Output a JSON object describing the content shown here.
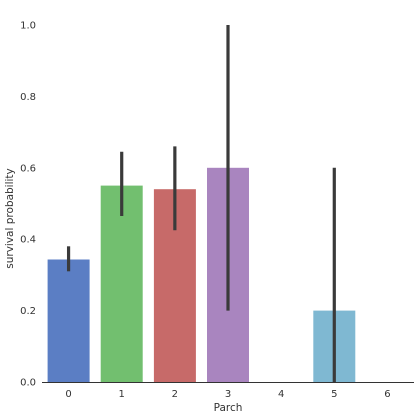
{
  "chart_data": {
    "type": "bar",
    "title": "",
    "xlabel": "Parch",
    "ylabel": "survival probability",
    "categories": [
      "0",
      "1",
      "2",
      "3",
      "4",
      "5",
      "6"
    ],
    "values": [
      0.343,
      0.55,
      0.54,
      0.6,
      0.0,
      0.2,
      0.0
    ],
    "ci_low": [
      0.31,
      0.465,
      0.425,
      0.2,
      null,
      0.0,
      null
    ],
    "ci_high": [
      0.38,
      0.645,
      0.66,
      1.0,
      null,
      0.6,
      null
    ],
    "colors": [
      "#5b7ec4",
      "#72bf6f",
      "#c76a69",
      "#a985bf",
      "#d3c37c",
      "#7fb8d2",
      "#5b7ec4"
    ],
    "errorbar_color": "#3a3a3a",
    "ylim": [
      0.0,
      1.05
    ],
    "yticks": [
      0.0,
      0.2,
      0.4,
      0.6,
      0.8,
      1.0
    ],
    "ytick_labels": [
      "0.0",
      "0.2",
      "0.4",
      "0.6",
      "0.8",
      "1.0"
    ],
    "grid": false,
    "legend": "none"
  }
}
